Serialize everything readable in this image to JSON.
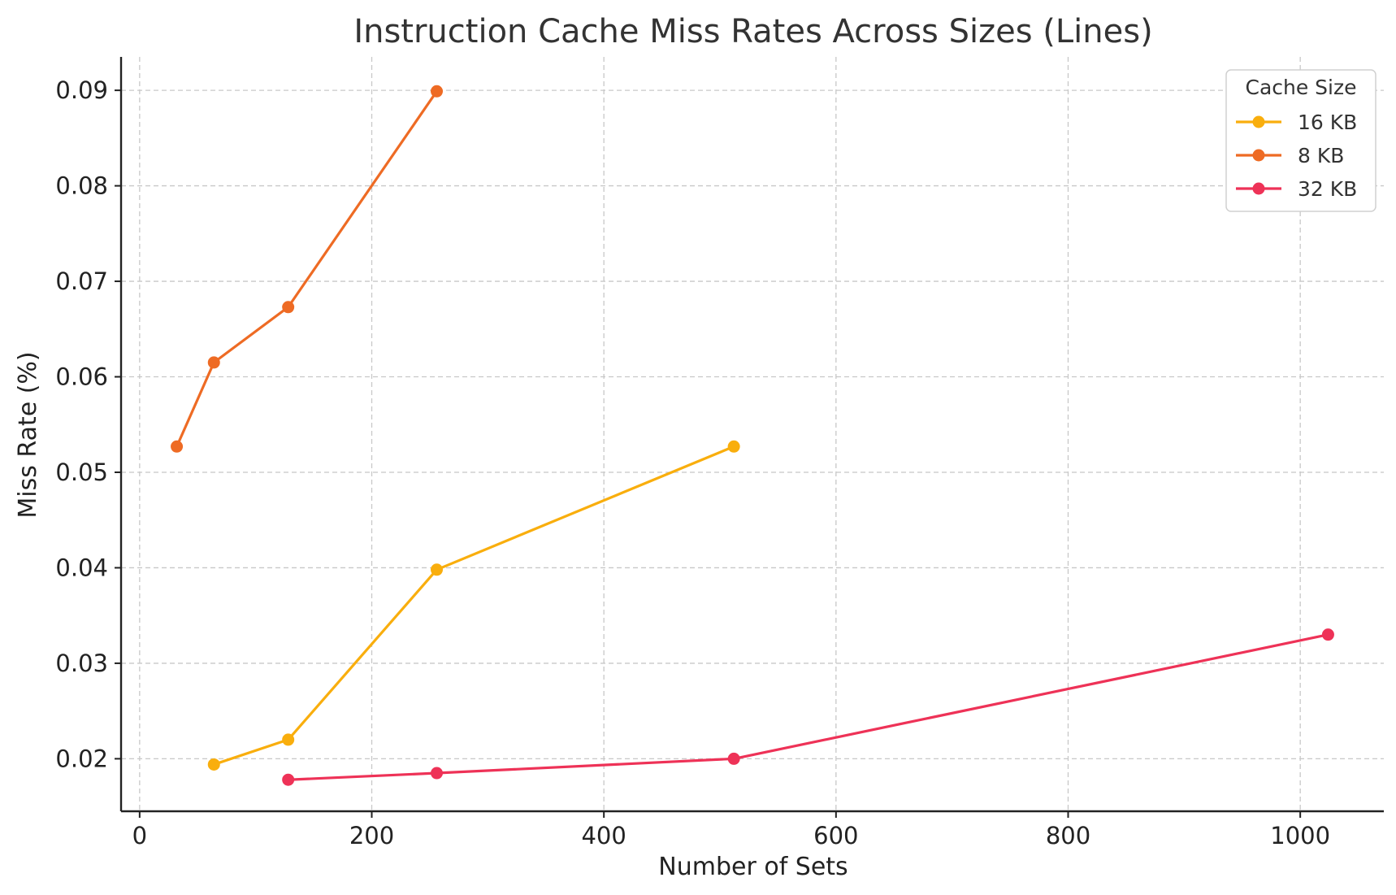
{
  "chart_data": {
    "type": "line",
    "title": "Instruction Cache Miss Rates Across Sizes (Lines)",
    "xlabel": "Number of Sets",
    "ylabel": "Miss Rate (%)",
    "xlim": [
      -16,
      1072
    ],
    "ylim": [
      0.0145,
      0.0935
    ],
    "xticks": [
      0,
      200,
      400,
      600,
      800,
      1000
    ],
    "xtick_labels": [
      "0",
      "200",
      "400",
      "600",
      "800",
      "1000"
    ],
    "yticks": [
      0.02,
      0.03,
      0.04,
      0.05,
      0.06,
      0.07,
      0.08,
      0.09
    ],
    "ytick_labels": [
      "0.02",
      "0.03",
      "0.04",
      "0.05",
      "0.06",
      "0.07",
      "0.08",
      "0.09"
    ],
    "grid": true,
    "legend": {
      "title": "Cache Size",
      "position": "top-right"
    },
    "series": [
      {
        "name": "16 KB",
        "color": "#F9AE0D",
        "x": [
          64,
          128,
          256,
          512
        ],
        "y": [
          0.0194,
          0.022,
          0.0398,
          0.0527
        ]
      },
      {
        "name": "8 KB",
        "color": "#EE6B24",
        "x": [
          32,
          64,
          128,
          256
        ],
        "y": [
          0.0527,
          0.0615,
          0.0673,
          0.0899
        ]
      },
      {
        "name": "32 KB",
        "color": "#EE3257",
        "x": [
          128,
          256,
          512,
          1024
        ],
        "y": [
          0.0178,
          0.0185,
          0.02,
          0.033
        ]
      }
    ]
  }
}
